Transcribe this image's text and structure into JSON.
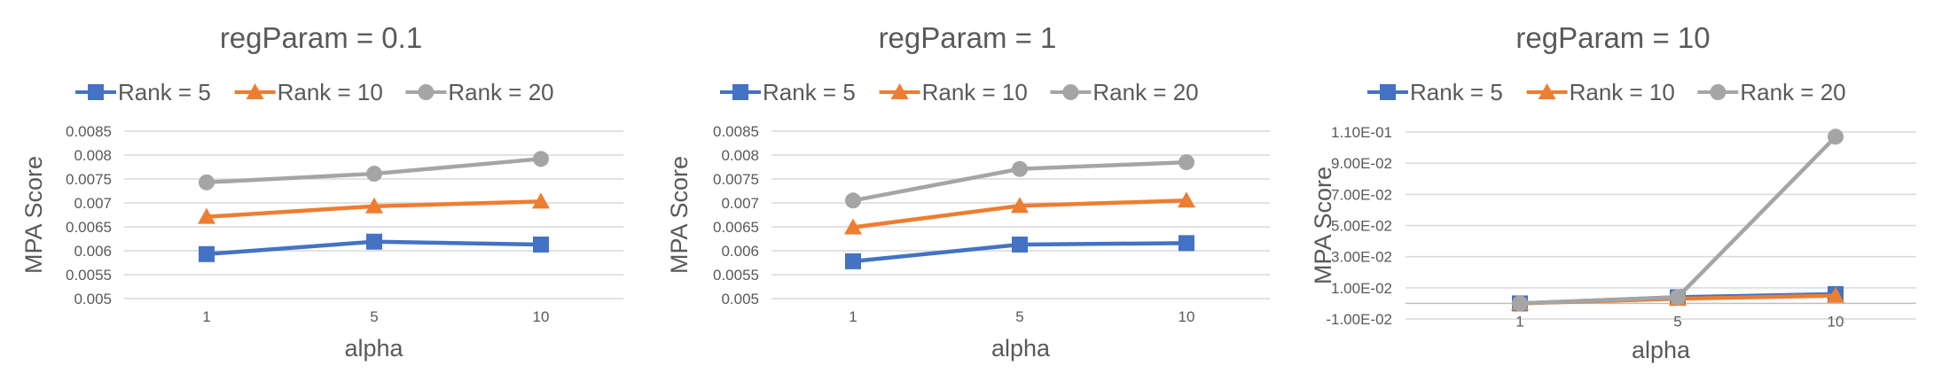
{
  "colors": {
    "rank5": "#4472C4",
    "rank10": "#ED7D31",
    "rank20": "#A5A5A5",
    "grid": "#D9D9D9",
    "text": "#595959"
  },
  "chart_data": [
    {
      "type": "line",
      "title": "regParam = 0.1",
      "xlabel": "alpha",
      "ylabel": "MPA Score",
      "categories": [
        "1",
        "5",
        "10"
      ],
      "yticks": [
        "0.005",
        "0.0055",
        "0.006",
        "0.0065",
        "0.007",
        "0.0075",
        "0.008",
        "0.0085"
      ],
      "ylim": [
        0.005,
        0.0085
      ],
      "grid": true,
      "legend": "top",
      "series": [
        {
          "name": "Rank = 5",
          "marker": "square",
          "values": [
            0.00593,
            0.00619,
            0.00613
          ]
        },
        {
          "name": "Rank = 10",
          "marker": "triangle",
          "values": [
            0.00671,
            0.00693,
            0.00703
          ]
        },
        {
          "name": "Rank = 20",
          "marker": "circle",
          "values": [
            0.00743,
            0.00761,
            0.00792
          ]
        }
      ]
    },
    {
      "type": "line",
      "title": "regParam = 1",
      "xlabel": "alpha",
      "ylabel": "MPA Score",
      "categories": [
        "1",
        "5",
        "10"
      ],
      "yticks": [
        "0.005",
        "0.0055",
        "0.006",
        "0.0065",
        "0.007",
        "0.0075",
        "0.008",
        "0.0085"
      ],
      "ylim": [
        0.005,
        0.0085
      ],
      "grid": true,
      "legend": "top",
      "series": [
        {
          "name": "Rank = 5",
          "marker": "square",
          "values": [
            0.00578,
            0.00613,
            0.00616
          ]
        },
        {
          "name": "Rank = 10",
          "marker": "triangle",
          "values": [
            0.00649,
            0.00694,
            0.00705
          ]
        },
        {
          "name": "Rank = 20",
          "marker": "circle",
          "values": [
            0.00705,
            0.00771,
            0.00785
          ]
        }
      ]
    },
    {
      "type": "line",
      "title": "regParam = 10",
      "xlabel": "alpha",
      "ylabel": "MPA Score",
      "categories": [
        "1",
        "5",
        "10"
      ],
      "yticks": [
        "-1.00E-02",
        "1.00E-02",
        "3.00E-02",
        "5.00E-02",
        "7.00E-02",
        "9.00E-02",
        "1.10E-01"
      ],
      "ylim": [
        -0.01,
        0.11
      ],
      "grid": true,
      "legend": "top",
      "series": [
        {
          "name": "Rank = 5",
          "marker": "square",
          "values": [
            0.0,
            0.004,
            0.006
          ]
        },
        {
          "name": "Rank = 10",
          "marker": "triangle",
          "values": [
            0.0,
            0.003,
            0.005
          ]
        },
        {
          "name": "Rank = 20",
          "marker": "circle",
          "values": [
            0.0,
            0.004,
            0.107
          ]
        }
      ]
    }
  ]
}
